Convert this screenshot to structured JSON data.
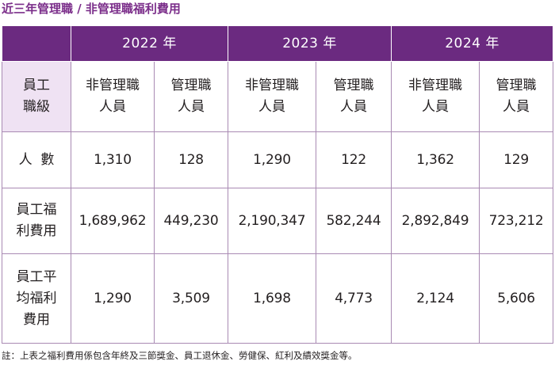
{
  "title": "近三年管理職 / 非管理職福利費用",
  "years": [
    "2022 年",
    "2023 年",
    "2024 年"
  ],
  "header": {
    "corner": "",
    "row_label": [
      "員工",
      "職級"
    ],
    "non_mgmt": [
      "非管理職",
      "人員"
    ],
    "mgmt": [
      "管理職",
      "人員"
    ]
  },
  "rows": [
    {
      "label": [
        "人  數"
      ],
      "values": [
        "1,310",
        "128",
        "1,290",
        "122",
        "1,362",
        "129"
      ]
    },
    {
      "label": [
        "員工福",
        "利費用"
      ],
      "values": [
        "1,689,962",
        "449,230",
        "2,190,347",
        "582,244",
        "2,892,849",
        "723,212"
      ]
    },
    {
      "label": [
        "員工平",
        "均福利",
        "費用"
      ],
      "values": [
        "1,290",
        "3,509",
        "1,698",
        "4,773",
        "2,124",
        "5,606"
      ]
    }
  ],
  "note": "註：上表之福利費用係包含年終及三節獎金、員工退休金、勞健保、紅利及績效獎金等。",
  "colors": {
    "header_purple": "#6b2a80",
    "header_light": "#efe2f3",
    "label_pink": "#f9ecf6",
    "border": "#a98ab3",
    "title": "#7b2e8a"
  }
}
